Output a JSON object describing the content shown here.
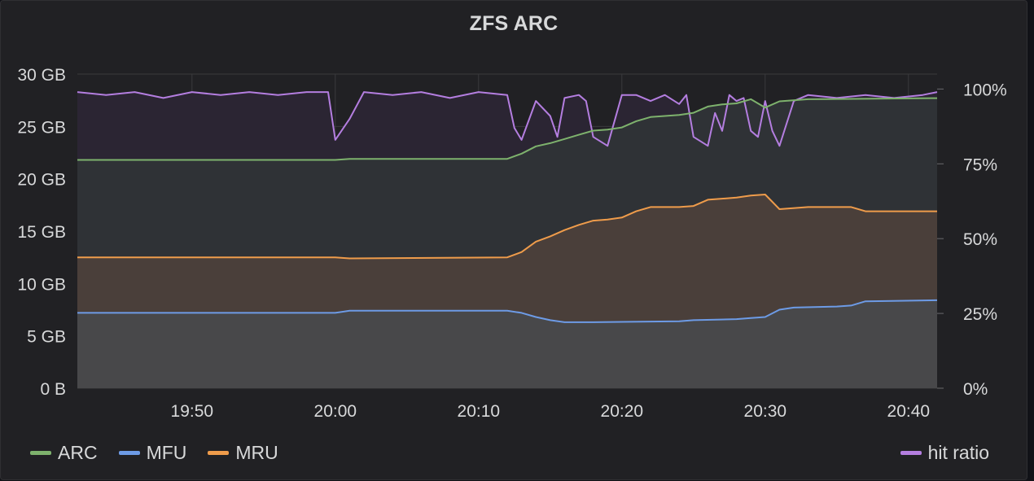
{
  "panel": {
    "title": "ZFS ARC"
  },
  "legend": {
    "left": [
      {
        "label": "ARC",
        "color": "#7eb26d"
      },
      {
        "label": "MFU",
        "color": "#6d9be6"
      },
      {
        "label": "MRU",
        "color": "#ef9c4b"
      }
    ],
    "right": [
      {
        "label": "hit ratio",
        "color": "#b47ee0"
      }
    ]
  },
  "chart_data": {
    "type": "area",
    "title": "ZFS ARC",
    "x_time_range": [
      "19:42",
      "20:42"
    ],
    "x_ticks": [
      "19:50",
      "20:00",
      "20:10",
      "20:20",
      "20:30",
      "20:40"
    ],
    "y_left": {
      "unit": "GB",
      "ylim": [
        0,
        30
      ],
      "ticks": [
        "0 B",
        "5 GB",
        "10 GB",
        "15 GB",
        "20 GB",
        "25 GB",
        "30 GB"
      ]
    },
    "y_right": {
      "unit": "%",
      "ylim": [
        0,
        105
      ],
      "ticks": [
        "0%",
        "25%",
        "50%",
        "75%",
        "100%"
      ]
    },
    "grid": true,
    "legend_placement": "bottom",
    "series": [
      {
        "name": "ARC",
        "axis": "left",
        "color": "#7eb26d",
        "fill": true,
        "points": [
          [
            "19:42",
            21.8
          ],
          [
            "20:00",
            21.8
          ],
          [
            "20:01",
            21.9
          ],
          [
            "20:12",
            21.9
          ],
          [
            "20:13",
            22.4
          ],
          [
            "20:14",
            23.1
          ],
          [
            "20:15",
            23.4
          ],
          [
            "20:16",
            23.8
          ],
          [
            "20:17",
            24.2
          ],
          [
            "20:18",
            24.6
          ],
          [
            "20:19",
            24.7
          ],
          [
            "20:20",
            24.9
          ],
          [
            "20:21",
            25.5
          ],
          [
            "20:22",
            25.9
          ],
          [
            "20:23",
            26.0
          ],
          [
            "20:24",
            26.1
          ],
          [
            "20:25",
            26.3
          ],
          [
            "20:26",
            26.9
          ],
          [
            "20:27",
            27.1
          ],
          [
            "20:28",
            27.2
          ],
          [
            "20:29",
            27.6
          ],
          [
            "20:30",
            26.8
          ],
          [
            "20:31",
            27.4
          ],
          [
            "20:33",
            27.6
          ],
          [
            "20:42",
            27.7
          ]
        ]
      },
      {
        "name": "MRU",
        "axis": "left",
        "color": "#ef9c4b",
        "fill": true,
        "points": [
          [
            "19:42",
            12.5
          ],
          [
            "20:00",
            12.5
          ],
          [
            "20:01",
            12.4
          ],
          [
            "20:12",
            12.5
          ],
          [
            "20:13",
            13.0
          ],
          [
            "20:14",
            14.0
          ],
          [
            "20:15",
            14.5
          ],
          [
            "20:16",
            15.1
          ],
          [
            "20:17",
            15.6
          ],
          [
            "20:18",
            16.0
          ],
          [
            "20:19",
            16.1
          ],
          [
            "20:20",
            16.3
          ],
          [
            "20:21",
            16.9
          ],
          [
            "20:22",
            17.3
          ],
          [
            "20:24",
            17.3
          ],
          [
            "20:25",
            17.4
          ],
          [
            "20:26",
            18.0
          ],
          [
            "20:28",
            18.2
          ],
          [
            "20:29",
            18.4
          ],
          [
            "20:30",
            18.5
          ],
          [
            "20:31",
            17.1
          ],
          [
            "20:33",
            17.3
          ],
          [
            "20:36",
            17.3
          ],
          [
            "20:37",
            16.9
          ],
          [
            "20:42",
            16.9
          ]
        ]
      },
      {
        "name": "MFU",
        "axis": "left",
        "color": "#6d9be6",
        "fill": true,
        "points": [
          [
            "19:42",
            7.2
          ],
          [
            "20:00",
            7.2
          ],
          [
            "20:01",
            7.4
          ],
          [
            "20:12",
            7.4
          ],
          [
            "20:13",
            7.2
          ],
          [
            "20:14",
            6.8
          ],
          [
            "20:15",
            6.5
          ],
          [
            "20:16",
            6.3
          ],
          [
            "20:18",
            6.3
          ],
          [
            "20:24",
            6.4
          ],
          [
            "20:25",
            6.5
          ],
          [
            "20:28",
            6.6
          ],
          [
            "20:29",
            6.7
          ],
          [
            "20:30",
            6.8
          ],
          [
            "20:31",
            7.5
          ],
          [
            "20:32",
            7.7
          ],
          [
            "20:35",
            7.8
          ],
          [
            "20:36",
            7.9
          ],
          [
            "20:37",
            8.3
          ],
          [
            "20:42",
            8.4
          ]
        ]
      },
      {
        "name": "hit ratio",
        "axis": "right",
        "color": "#b47ee0",
        "fill": true,
        "points": [
          [
            "19:42",
            99
          ],
          [
            "19:44",
            98
          ],
          [
            "19:46",
            99
          ],
          [
            "19:48",
            97
          ],
          [
            "19:50",
            99
          ],
          [
            "19:52",
            98
          ],
          [
            "19:54",
            99
          ],
          [
            "19:56",
            98
          ],
          [
            "19:58",
            99
          ],
          [
            "19:59.5",
            99
          ],
          [
            "20:00",
            83
          ],
          [
            "20:01",
            90
          ],
          [
            "20:02",
            99
          ],
          [
            "20:04",
            98
          ],
          [
            "20:06",
            99
          ],
          [
            "20:08",
            97
          ],
          [
            "20:10",
            99
          ],
          [
            "20:12",
            98
          ],
          [
            "20:12.5",
            87
          ],
          [
            "20:13",
            83
          ],
          [
            "20:14",
            96
          ],
          [
            "20:15",
            91
          ],
          [
            "20:15.5",
            84
          ],
          [
            "20:16",
            97
          ],
          [
            "20:17",
            98
          ],
          [
            "20:17.5",
            96
          ],
          [
            "20:18",
            84
          ],
          [
            "20:19",
            81
          ],
          [
            "20:20",
            98
          ],
          [
            "20:21",
            98
          ],
          [
            "20:22",
            96
          ],
          [
            "20:23",
            98
          ],
          [
            "20:24",
            95
          ],
          [
            "20:24.5",
            98
          ],
          [
            "20:25",
            84
          ],
          [
            "20:26",
            81
          ],
          [
            "20:26.5",
            92
          ],
          [
            "20:27",
            86
          ],
          [
            "20:27.5",
            98
          ],
          [
            "20:28",
            96
          ],
          [
            "20:28.5",
            97
          ],
          [
            "20:29",
            86
          ],
          [
            "20:29.5",
            84
          ],
          [
            "20:30",
            96
          ],
          [
            "20:30.5",
            86
          ],
          [
            "20:31",
            81
          ],
          [
            "20:32",
            96
          ],
          [
            "20:33",
            98
          ],
          [
            "20:35",
            97
          ],
          [
            "20:37",
            98
          ],
          [
            "20:39",
            97
          ],
          [
            "20:41",
            98
          ],
          [
            "20:42",
            99
          ]
        ]
      }
    ]
  }
}
